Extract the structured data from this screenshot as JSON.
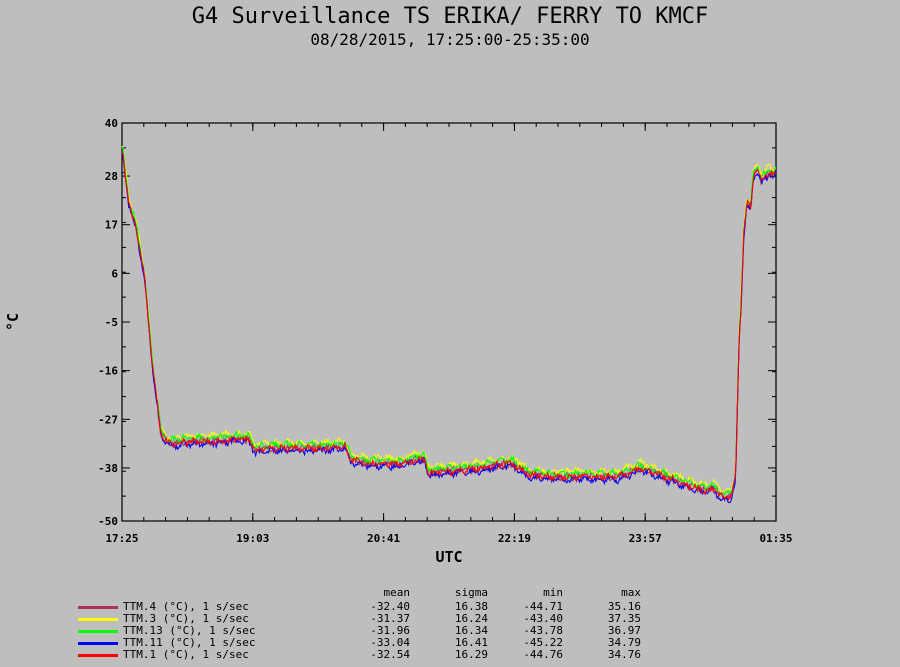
{
  "chart_data": {
    "type": "line",
    "title": "G4 Surveillance TS ERIKA/ FERRY TO KMCF",
    "subtitle": "08/28/2015, 17:25:00-25:35:00",
    "xlabel": "UTC",
    "ylabel": "°C",
    "ylim": [
      -50,
      40
    ],
    "yticks": [
      40,
      28,
      17,
      6,
      -5,
      -16,
      -27,
      -38,
      -50
    ],
    "xticks": [
      "17:25",
      "19:03",
      "20:41",
      "22:19",
      "23:57",
      "01:35"
    ],
    "xlim_hours": [
      17.4167,
      25.5833
    ],
    "grid": false,
    "legend_position": "bottom-left",
    "stat_headers": [
      "mean",
      "sigma",
      "min",
      "max"
    ],
    "series": [
      {
        "name": "TTM.4 (°C), 1 s/sec",
        "color": "#b0305a",
        "offset": 0.0,
        "stats": [
          "-32.40",
          "16.38",
          "-44.71",
          "35.16"
        ]
      },
      {
        "name": "TTM.3 (°C), 1 s/sec",
        "color": "#ffff00",
        "offset": 1.2,
        "stats": [
          "-31.37",
          "16.24",
          "-43.40",
          "37.35"
        ]
      },
      {
        "name": "TTM.13 (°C), 1 s/sec",
        "color": "#00ff00",
        "offset": 0.7,
        "stats": [
          "-31.96",
          "16.34",
          "-43.78",
          "36.97"
        ]
      },
      {
        "name": "TTM.11 (°C), 1 s/sec",
        "color": "#0000ff",
        "offset": -0.6,
        "stats": [
          "-33.04",
          "16.41",
          "-45.22",
          "34.79"
        ]
      },
      {
        "name": "TTM.1 (°C), 1 s/sec",
        "color": "#ff0000",
        "offset": -0.1,
        "stats": [
          "-32.54",
          "16.29",
          "-44.76",
          "34.76"
        ]
      }
    ],
    "profile": {
      "x": [
        17.42,
        17.45,
        17.5,
        17.6,
        17.7,
        17.8,
        17.9,
        18.0,
        18.2,
        18.5,
        18.8,
        19.0,
        19.05,
        19.07,
        19.3,
        19.6,
        19.9,
        20.2,
        20.25,
        20.27,
        20.5,
        20.7,
        20.9,
        21.1,
        21.2,
        21.23,
        21.3,
        21.6,
        21.9,
        22.2,
        22.3,
        22.5,
        22.8,
        23.0,
        23.3,
        23.6,
        23.9,
        24.2,
        24.5,
        24.7,
        24.8,
        24.88,
        24.92,
        24.96,
        25.0,
        25.03,
        25.08,
        25.12,
        25.15,
        25.18,
        25.22,
        25.27,
        25.3,
        25.35,
        25.4,
        25.45,
        25.5,
        25.55,
        25.58
      ],
      "y": [
        34,
        30,
        22,
        16,
        5,
        -15,
        -30,
        -32.5,
        -32,
        -32,
        -31.5,
        -31.5,
        -33,
        -34,
        -33.5,
        -33.5,
        -33.5,
        -33,
        -35,
        -36,
        -37,
        -37,
        -37,
        -36,
        -36,
        -39,
        -39,
        -38.5,
        -38,
        -37,
        -37,
        -39.5,
        -40,
        -40,
        -40,
        -40,
        -38,
        -40,
        -42,
        -43,
        -42.5,
        -44,
        -44.5,
        -44.5,
        -44.5,
        -44,
        -40,
        -10,
        0,
        15,
        22,
        21,
        28,
        30,
        27,
        28,
        29,
        28,
        29
      ]
    }
  }
}
